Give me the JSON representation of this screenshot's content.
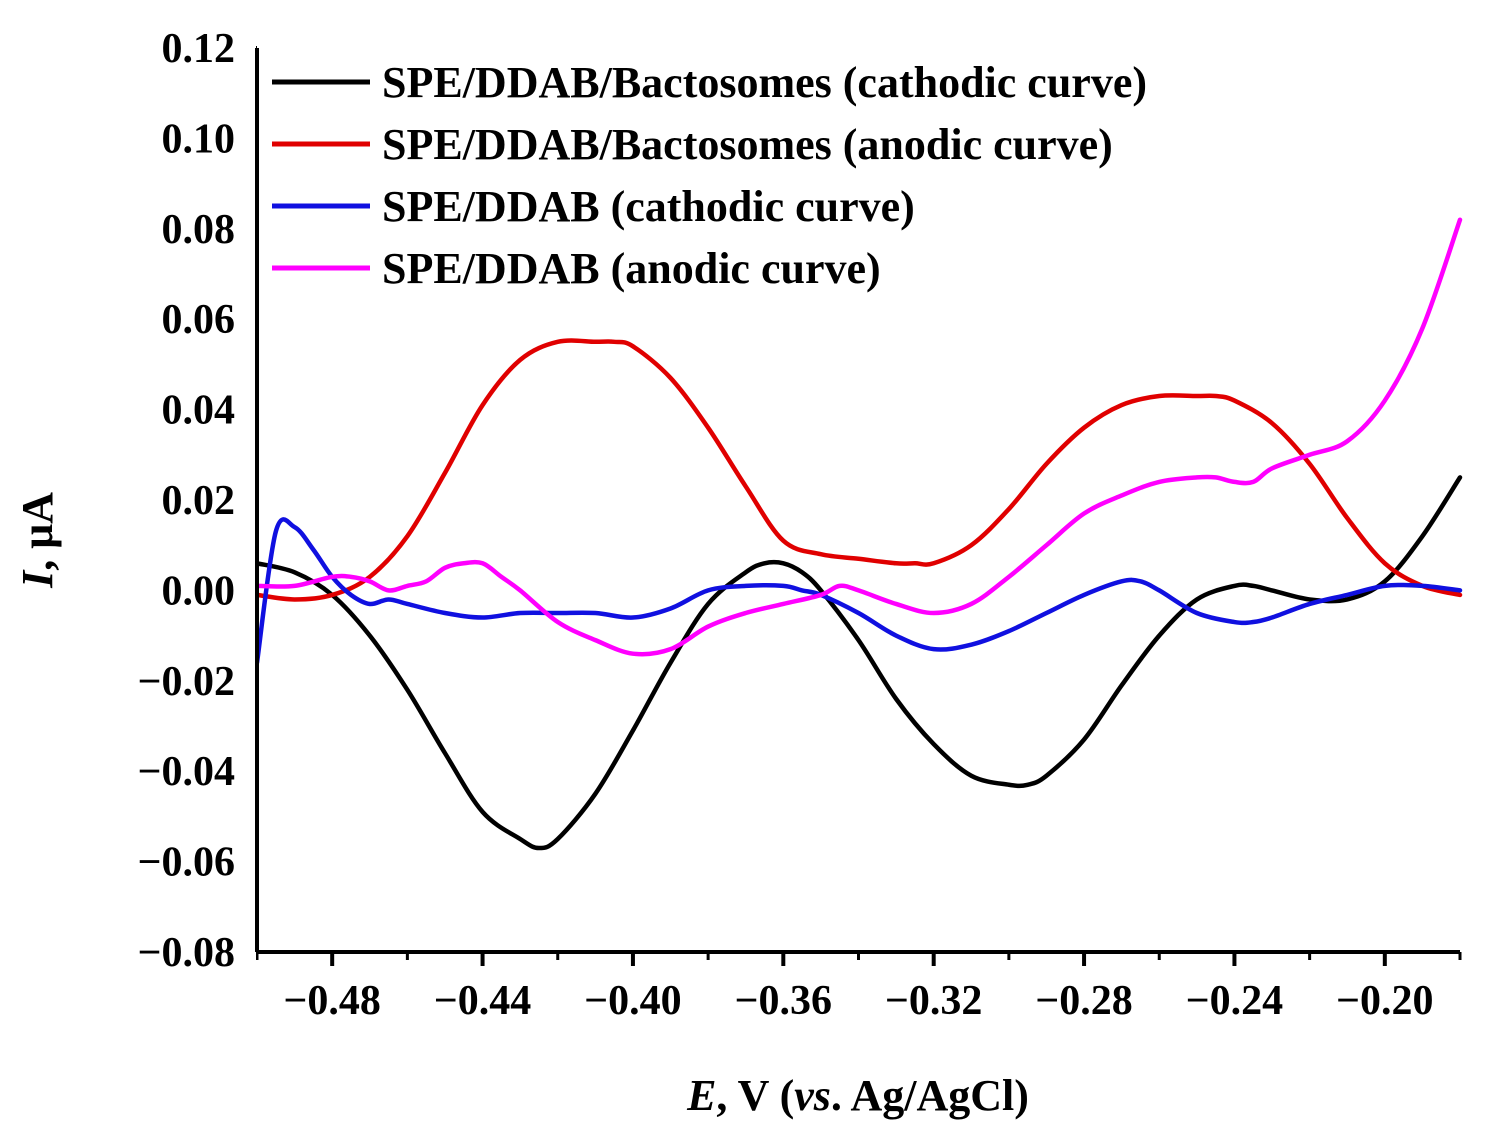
{
  "chart_data": {
    "type": "line",
    "title": "",
    "xlabel": {
      "italic": "E",
      "plain": ", V (",
      "italic2": "vs",
      "plain2": ". Ag/AgCl)"
    },
    "ylabel": {
      "italic": "I",
      "plain": ", μA"
    },
    "xlim": [
      -0.5,
      -0.18
    ],
    "ylim": [
      -0.08,
      0.12
    ],
    "xticks": [
      -0.48,
      -0.44,
      -0.4,
      -0.36,
      -0.32,
      -0.28,
      -0.24,
      -0.2
    ],
    "xtick_labels": [
      "−0.48",
      "−0.44",
      "−0.40",
      "−0.36",
      "−0.32",
      "−0.28",
      "−0.24",
      "−0.20"
    ],
    "yticks": [
      -0.08,
      -0.06,
      -0.04,
      -0.02,
      0.0,
      0.02,
      0.04,
      0.06,
      0.08,
      0.1,
      0.12
    ],
    "ytick_labels": [
      "−0.08",
      "−0.06",
      "−0.04",
      "−0.02",
      "0.00",
      "0.02",
      "0.04",
      "0.06",
      "0.08",
      "0.10",
      "0.12"
    ],
    "legend_position": "top-left",
    "series": [
      {
        "name": "SPE/DDAB/Bactosomes (cathodic curve)",
        "color": "#000000",
        "x": [
          -0.5,
          -0.49,
          -0.48,
          -0.47,
          -0.46,
          -0.45,
          -0.44,
          -0.43,
          -0.425,
          -0.42,
          -0.41,
          -0.4,
          -0.39,
          -0.38,
          -0.37,
          -0.365,
          -0.36,
          -0.355,
          -0.35,
          -0.34,
          -0.33,
          -0.32,
          -0.31,
          -0.3,
          -0.295,
          -0.29,
          -0.28,
          -0.27,
          -0.26,
          -0.25,
          -0.24,
          -0.235,
          -0.23,
          -0.22,
          -0.21,
          -0.2,
          -0.19,
          -0.18
        ],
        "y": [
          0.006,
          0.004,
          -0.001,
          -0.01,
          -0.022,
          -0.036,
          -0.049,
          -0.055,
          -0.057,
          -0.055,
          -0.045,
          -0.031,
          -0.016,
          -0.003,
          0.004,
          0.006,
          0.006,
          0.004,
          0.0,
          -0.011,
          -0.024,
          -0.034,
          -0.041,
          -0.043,
          -0.043,
          -0.041,
          -0.033,
          -0.021,
          -0.01,
          -0.002,
          0.001,
          0.001,
          0.0,
          -0.002,
          -0.002,
          0.002,
          0.012,
          0.025
        ]
      },
      {
        "name": "SPE/DDAB/Bactosomes (anodic curve)",
        "color": "#e00000",
        "x": [
          -0.5,
          -0.49,
          -0.48,
          -0.47,
          -0.46,
          -0.45,
          -0.44,
          -0.43,
          -0.42,
          -0.41,
          -0.405,
          -0.4,
          -0.39,
          -0.38,
          -0.37,
          -0.36,
          -0.35,
          -0.34,
          -0.33,
          -0.325,
          -0.32,
          -0.31,
          -0.3,
          -0.29,
          -0.28,
          -0.27,
          -0.26,
          -0.25,
          -0.245,
          -0.24,
          -0.23,
          -0.22,
          -0.21,
          -0.2,
          -0.19,
          -0.18
        ],
        "y": [
          -0.001,
          -0.002,
          -0.001,
          0.003,
          0.012,
          0.026,
          0.041,
          0.051,
          0.055,
          0.055,
          0.055,
          0.054,
          0.047,
          0.036,
          0.023,
          0.011,
          0.008,
          0.007,
          0.006,
          0.006,
          0.006,
          0.01,
          0.018,
          0.028,
          0.036,
          0.041,
          0.043,
          0.043,
          0.043,
          0.042,
          0.037,
          0.028,
          0.016,
          0.006,
          0.001,
          -0.001
        ]
      },
      {
        "name": "SPE/DDAB (cathodic curve)",
        "color": "#1010e0",
        "x": [
          -0.5,
          -0.495,
          -0.49,
          -0.485,
          -0.48,
          -0.475,
          -0.47,
          -0.465,
          -0.46,
          -0.45,
          -0.44,
          -0.43,
          -0.42,
          -0.41,
          -0.4,
          -0.39,
          -0.38,
          -0.37,
          -0.36,
          -0.355,
          -0.35,
          -0.34,
          -0.33,
          -0.32,
          -0.31,
          -0.3,
          -0.29,
          -0.28,
          -0.27,
          -0.265,
          -0.26,
          -0.25,
          -0.24,
          -0.235,
          -0.23,
          -0.22,
          -0.21,
          -0.2,
          -0.19,
          -0.18
        ],
        "y": [
          -0.016,
          0.013,
          0.014,
          0.009,
          0.003,
          -0.001,
          -0.003,
          -0.002,
          -0.003,
          -0.005,
          -0.006,
          -0.005,
          -0.005,
          -0.005,
          -0.006,
          -0.004,
          0.0,
          0.001,
          0.001,
          0.0,
          -0.001,
          -0.005,
          -0.01,
          -0.013,
          -0.012,
          -0.009,
          -0.005,
          -0.001,
          0.002,
          0.002,
          0.0,
          -0.005,
          -0.007,
          -0.007,
          -0.006,
          -0.003,
          -0.001,
          0.001,
          0.001,
          0.0
        ]
      },
      {
        "name": "SPE/DDAB (anodic curve)",
        "color": "#ff00ff",
        "x": [
          -0.5,
          -0.49,
          -0.48,
          -0.475,
          -0.47,
          -0.465,
          -0.46,
          -0.455,
          -0.45,
          -0.445,
          -0.44,
          -0.435,
          -0.43,
          -0.42,
          -0.41,
          -0.4,
          -0.39,
          -0.38,
          -0.37,
          -0.36,
          -0.35,
          -0.345,
          -0.34,
          -0.33,
          -0.32,
          -0.31,
          -0.3,
          -0.29,
          -0.28,
          -0.27,
          -0.26,
          -0.25,
          -0.245,
          -0.24,
          -0.235,
          -0.23,
          -0.22,
          -0.21,
          -0.2,
          -0.19,
          -0.18
        ],
        "y": [
          0.001,
          0.001,
          0.003,
          0.003,
          0.002,
          0.0,
          0.001,
          0.002,
          0.005,
          0.006,
          0.006,
          0.003,
          0.0,
          -0.007,
          -0.011,
          -0.014,
          -0.013,
          -0.008,
          -0.005,
          -0.003,
          -0.001,
          0.001,
          0.0,
          -0.003,
          -0.005,
          -0.003,
          0.003,
          0.01,
          0.017,
          0.021,
          0.024,
          0.025,
          0.025,
          0.024,
          0.024,
          0.027,
          0.03,
          0.033,
          0.042,
          0.058,
          0.082
        ]
      }
    ]
  }
}
